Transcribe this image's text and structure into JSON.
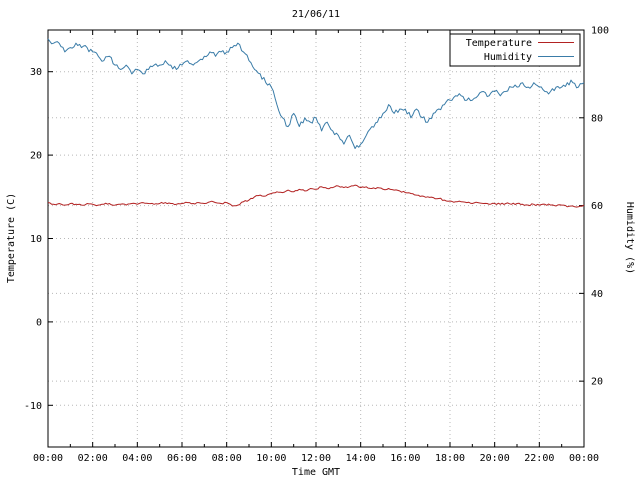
{
  "chart_data": {
    "type": "line",
    "title": "21/06/11",
    "x_axis": {
      "label": "Time GMT",
      "min_hours": 0,
      "max_hours": 24,
      "major_tick_hours": 2,
      "minor_tick_hours": 1,
      "tick_labels": [
        "00:00",
        "02:00",
        "04:00",
        "06:00",
        "08:00",
        "10:00",
        "12:00",
        "14:00",
        "16:00",
        "18:00",
        "20:00",
        "22:00",
        "00:00"
      ]
    },
    "y_left_axis": {
      "label": "Temperature (C)",
      "min": -15,
      "max": 35,
      "ticks": [
        -10,
        0,
        10,
        20,
        30
      ]
    },
    "y_right_axis": {
      "label": "Humidity (%)",
      "min": 5,
      "max": 100,
      "ticks": [
        20,
        40,
        60,
        80,
        100
      ]
    },
    "grid": true,
    "legend": {
      "position": "top-right-inside",
      "boxed": true,
      "entries": [
        "Temperature",
        "Humidity"
      ]
    },
    "x_start_hours": 0,
    "x_step_hours": 0.25,
    "series": [
      {
        "name": "Temperature",
        "axis": "left",
        "color": "#b22222",
        "noise": 0.1,
        "values": [
          14.3,
          14.1,
          14.2,
          14.0,
          14.2,
          14.1,
          14.0,
          14.2,
          14.1,
          14.0,
          14.1,
          14.2,
          14.0,
          14.1,
          14.0,
          14.2,
          14.1,
          14.3,
          14.2,
          14.1,
          14.2,
          14.3,
          14.2,
          14.1,
          14.2,
          14.3,
          14.2,
          14.3,
          14.2,
          14.4,
          14.3,
          14.2,
          14.3,
          13.9,
          14.0,
          14.4,
          14.6,
          15.0,
          15.2,
          15.1,
          15.4,
          15.6,
          15.5,
          15.8,
          15.6,
          15.9,
          15.7,
          16.0,
          15.9,
          16.2,
          16.0,
          16.1,
          16.3,
          16.1,
          16.2,
          16.4,
          16.1,
          16.2,
          16.0,
          16.1,
          15.9,
          16.0,
          15.8,
          15.7,
          15.5,
          15.4,
          15.2,
          15.1,
          15.0,
          14.9,
          14.8,
          14.6,
          14.5,
          14.4,
          14.4,
          14.3,
          14.2,
          14.3,
          14.2,
          14.1,
          14.2,
          14.1,
          14.2,
          14.1,
          14.2,
          14.1,
          14.0,
          14.1,
          14.0,
          14.1,
          14.0,
          13.9,
          14.0,
          13.8,
          13.9,
          13.8,
          14.0
        ]
      },
      {
        "name": "Humidity",
        "axis": "right",
        "color": "#3a7ca8",
        "noise": 0.6,
        "values": [
          98,
          97,
          97,
          95,
          96,
          97,
          96,
          96,
          95,
          94,
          93,
          94,
          92,
          91,
          92,
          90,
          91,
          90,
          91,
          92,
          92,
          93,
          92,
          91,
          92,
          93,
          92,
          93,
          94,
          95,
          94,
          95,
          95,
          96,
          97,
          95,
          93,
          91,
          90,
          88,
          87,
          83,
          80,
          78,
          81,
          78,
          80,
          79,
          80,
          77,
          79,
          77,
          76,
          74,
          76,
          73,
          74,
          76,
          78,
          79,
          81,
          83,
          81,
          82,
          82,
          80,
          82,
          80,
          79,
          81,
          82,
          83,
          84,
          85,
          85,
          84,
          84,
          85,
          86,
          85,
          86,
          85,
          86,
          87,
          87,
          88,
          87,
          88,
          87,
          86,
          86,
          87,
          87,
          88,
          88,
          87,
          88
        ]
      }
    ]
  },
  "style": {
    "background": "#ffffff",
    "plot_border_color": "#000000",
    "grid_color": "#b8b8b8",
    "text_color": "#000000",
    "temperature_color": "#b22222",
    "humidity_color": "#3a7ca8"
  }
}
